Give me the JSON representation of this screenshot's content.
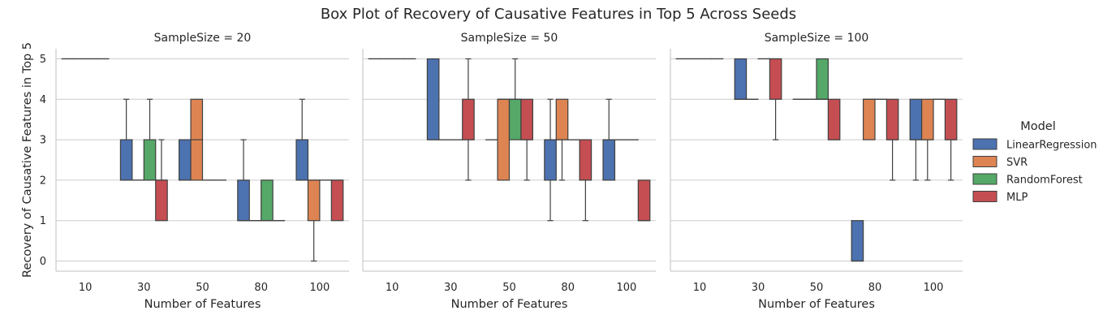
{
  "chart_data": {
    "type": "box",
    "title": "Box Plot of Recovery of Causative Features in Top 5 Across Seeds",
    "ylabel": "Recovery of Causative Features in Top 5",
    "xlabel": "Number of Features",
    "categories": [
      "10",
      "30",
      "50",
      "80",
      "100"
    ],
    "yticks": [
      0,
      1,
      2,
      3,
      4,
      5
    ],
    "ylim": [
      -0.25,
      5.25
    ],
    "grid": "y",
    "legend": {
      "title": "Model",
      "placement": "right",
      "entries": [
        "LinearRegression",
        "SVR",
        "RandomForest",
        "MLP"
      ]
    },
    "colors": {
      "LinearRegression": "#4c72b0",
      "SVR": "#dd8452",
      "RandomForest": "#55a868",
      "MLP": "#c44e52"
    },
    "facets": [
      {
        "title": "SampleSize = 20",
        "series": [
          {
            "name": "LinearRegression",
            "boxes": [
              {
                "whislo": 5,
                "q1": 5,
                "med": 5,
                "q3": 5,
                "whishi": 5
              },
              {
                "whislo": 2,
                "q1": 2,
                "med": 2,
                "q3": 3,
                "whishi": 4
              },
              {
                "whislo": 2,
                "q1": 2,
                "med": 2,
                "q3": 3,
                "whishi": 3
              },
              {
                "whislo": 1,
                "q1": 1,
                "med": 1,
                "q3": 2,
                "whishi": 3
              },
              {
                "whislo": 2,
                "q1": 2,
                "med": 2,
                "q3": 3,
                "whishi": 4
              }
            ]
          },
          {
            "name": "SVR",
            "boxes": [
              {
                "whislo": 5,
                "q1": 5,
                "med": 5,
                "q3": 5,
                "whishi": 5
              },
              {
                "whislo": 2,
                "q1": 2,
                "med": 2,
                "q3": 2,
                "whishi": 2
              },
              {
                "whislo": 2,
                "q1": 2,
                "med": 3,
                "q3": 4,
                "whishi": 4
              },
              {
                "whislo": 1,
                "q1": 1,
                "med": 1,
                "q3": 1,
                "whishi": 1
              },
              {
                "whislo": 0,
                "q1": 1,
                "med": 2,
                "q3": 2,
                "whishi": 2
              }
            ]
          },
          {
            "name": "RandomForest",
            "boxes": [
              {
                "whislo": 5,
                "q1": 5,
                "med": 5,
                "q3": 5,
                "whishi": 5
              },
              {
                "whislo": 2,
                "q1": 2,
                "med": 2,
                "q3": 3,
                "whishi": 4
              },
              {
                "whislo": 2,
                "q1": 2,
                "med": 2,
                "q3": 2,
                "whishi": 2
              },
              {
                "whislo": 1,
                "q1": 1,
                "med": 1,
                "q3": 2,
                "whishi": 2
              },
              {
                "whislo": 2,
                "q1": 2,
                "med": 2,
                "q3": 2,
                "whishi": 2
              }
            ]
          },
          {
            "name": "MLP",
            "boxes": [
              {
                "whislo": 5,
                "q1": 5,
                "med": 5,
                "q3": 5,
                "whishi": 5
              },
              {
                "whislo": 1,
                "q1": 1,
                "med": 2,
                "q3": 2,
                "whishi": 3
              },
              {
                "whislo": 2,
                "q1": 2,
                "med": 2,
                "q3": 2,
                "whishi": 2
              },
              {
                "whislo": 1,
                "q1": 1,
                "med": 1,
                "q3": 1,
                "whishi": 1
              },
              {
                "whislo": 1,
                "q1": 1,
                "med": 2,
                "q3": 2,
                "whishi": 2
              }
            ]
          }
        ]
      },
      {
        "title": "SampleSize = 50",
        "series": [
          {
            "name": "LinearRegression",
            "boxes": [
              {
                "whislo": 5,
                "q1": 5,
                "med": 5,
                "q3": 5,
                "whishi": 5
              },
              {
                "whislo": 3,
                "q1": 3,
                "med": 3,
                "q3": 5,
                "whishi": 5
              },
              {
                "whislo": 3,
                "q1": 3,
                "med": 3,
                "q3": 3,
                "whishi": 3
              },
              {
                "whislo": 1,
                "q1": 2,
                "med": 3,
                "q3": 3,
                "whishi": 4
              },
              {
                "whislo": 2,
                "q1": 2,
                "med": 3,
                "q3": 3,
                "whishi": 4
              }
            ]
          },
          {
            "name": "SVR",
            "boxes": [
              {
                "whislo": 5,
                "q1": 5,
                "med": 5,
                "q3": 5,
                "whishi": 5
              },
              {
                "whislo": 3,
                "q1": 3,
                "med": 3,
                "q3": 3,
                "whishi": 3
              },
              {
                "whislo": 2,
                "q1": 2,
                "med": 4,
                "q3": 4,
                "whishi": 4
              },
              {
                "whislo": 2,
                "q1": 3,
                "med": 3,
                "q3": 4,
                "whishi": 4
              },
              {
                "whislo": 3,
                "q1": 3,
                "med": 3,
                "q3": 3,
                "whishi": 3
              }
            ]
          },
          {
            "name": "RandomForest",
            "boxes": [
              {
                "whislo": 5,
                "q1": 5,
                "med": 5,
                "q3": 5,
                "whishi": 5
              },
              {
                "whislo": 3,
                "q1": 3,
                "med": 3,
                "q3": 3,
                "whishi": 3
              },
              {
                "whislo": 3,
                "q1": 3,
                "med": 4,
                "q3": 4,
                "whishi": 5
              },
              {
                "whislo": 3,
                "q1": 3,
                "med": 3,
                "q3": 3,
                "whishi": 3
              },
              {
                "whislo": 3,
                "q1": 3,
                "med": 3,
                "q3": 3,
                "whishi": 3
              }
            ]
          },
          {
            "name": "MLP",
            "boxes": [
              {
                "whislo": 5,
                "q1": 5,
                "med": 5,
                "q3": 5,
                "whishi": 5
              },
              {
                "whislo": 2,
                "q1": 3,
                "med": 3,
                "q3": 4,
                "whishi": 5
              },
              {
                "whislo": 2,
                "q1": 3,
                "med": 3,
                "q3": 4,
                "whishi": 4
              },
              {
                "whislo": 1,
                "q1": 2,
                "med": 2,
                "q3": 3,
                "whishi": 3
              },
              {
                "whislo": 1,
                "q1": 1,
                "med": 1,
                "q3": 2,
                "whishi": 2
              }
            ]
          }
        ]
      },
      {
        "title": "SampleSize = 100",
        "series": [
          {
            "name": "LinearRegression",
            "boxes": [
              {
                "whislo": 5,
                "q1": 5,
                "med": 5,
                "q3": 5,
                "whishi": 5
              },
              {
                "whislo": 4,
                "q1": 4,
                "med": 4,
                "q3": 5,
                "whishi": 5
              },
              {
                "whislo": 4,
                "q1": 4,
                "med": 4,
                "q3": 4,
                "whishi": 4
              },
              {
                "whislo": 0,
                "q1": 0,
                "med": 0,
                "q3": 1,
                "whishi": 1
              },
              {
                "whislo": 2,
                "q1": 3,
                "med": 3,
                "q3": 4,
                "whishi": 4
              }
            ]
          },
          {
            "name": "SVR",
            "boxes": [
              {
                "whislo": 5,
                "q1": 5,
                "med": 5,
                "q3": 5,
                "whishi": 5
              },
              {
                "whislo": 4,
                "q1": 4,
                "med": 4,
                "q3": 4,
                "whishi": 4
              },
              {
                "whislo": 4,
                "q1": 4,
                "med": 4,
                "q3": 4,
                "whishi": 4
              },
              {
                "whislo": 3,
                "q1": 3,
                "med": 4,
                "q3": 4,
                "whishi": 4
              },
              {
                "whislo": 2,
                "q1": 3,
                "med": 3,
                "q3": 4,
                "whishi": 4
              }
            ]
          },
          {
            "name": "RandomForest",
            "boxes": [
              {
                "whislo": 5,
                "q1": 5,
                "med": 5,
                "q3": 5,
                "whishi": 5
              },
              {
                "whislo": 5,
                "q1": 5,
                "med": 5,
                "q3": 5,
                "whishi": 5
              },
              {
                "whislo": 4,
                "q1": 4,
                "med": 4,
                "q3": 5,
                "whishi": 5
              },
              {
                "whislo": 4,
                "q1": 4,
                "med": 4,
                "q3": 4,
                "whishi": 4
              },
              {
                "whislo": 4,
                "q1": 4,
                "med": 4,
                "q3": 4,
                "whishi": 4
              }
            ]
          },
          {
            "name": "MLP",
            "boxes": [
              {
                "whislo": 5,
                "q1": 5,
                "med": 5,
                "q3": 5,
                "whishi": 5
              },
              {
                "whislo": 3,
                "q1": 4,
                "med": 5,
                "q3": 5,
                "whishi": 5
              },
              {
                "whislo": 3,
                "q1": 3,
                "med": 3,
                "q3": 4,
                "whishi": 4
              },
              {
                "whislo": 2,
                "q1": 3,
                "med": 3,
                "q3": 4,
                "whishi": 4
              },
              {
                "whislo": 2,
                "q1": 3,
                "med": 3,
                "q3": 4,
                "whishi": 4
              }
            ]
          }
        ]
      }
    ]
  }
}
